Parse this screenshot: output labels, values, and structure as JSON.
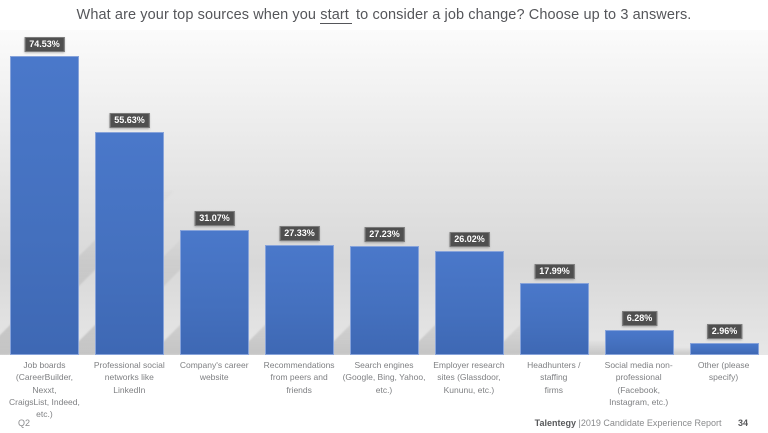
{
  "title": {
    "prefix": "What are your top sources when you ",
    "underlined": "start",
    "suffix": " to consider a job change? Choose up to 3 answers."
  },
  "chart_data": {
    "type": "bar",
    "title": "What are your top sources when you start to consider a job change? Choose up to 3 answers.",
    "categories": [
      "Job boards\n(CareerBuilder, Nexxt,\nCraigsList, Indeed, etc.)",
      "Professional social\nnetworks like LinkedIn",
      "Company's career\nwebsite",
      "Recommendations\nfrom peers and friends",
      "Search engines\n(Google, Bing, Yahoo,\netc.)",
      "Employer research\nsites (Glassdoor,\nKununu, etc.)",
      "Headhunters / staffing\nfirms",
      "Social media non-\nprofessional (Facebook,\nInstagram, etc.)",
      "Other (please specify)"
    ],
    "values": [
      74.53,
      55.63,
      31.07,
      27.33,
      27.23,
      26.02,
      17.99,
      6.28,
      2.96
    ],
    "value_labels": [
      "74.53%",
      "55.63%",
      "31.07%",
      "27.33%",
      "27.23%",
      "26.02%",
      "17.99%",
      "6.28%",
      "2.96%"
    ],
    "xlabel": "",
    "ylabel": "",
    "ylim": [
      0,
      80
    ],
    "grid": false,
    "legend": false,
    "bar_color": "#4472c4",
    "label_box_color": "#4f4f4f",
    "label_text_color": "#ffffff"
  },
  "footer": {
    "left": "Q2",
    "brand": "Talentegy",
    "report": "|2019 Candidate Experience Report",
    "page": "34"
  }
}
